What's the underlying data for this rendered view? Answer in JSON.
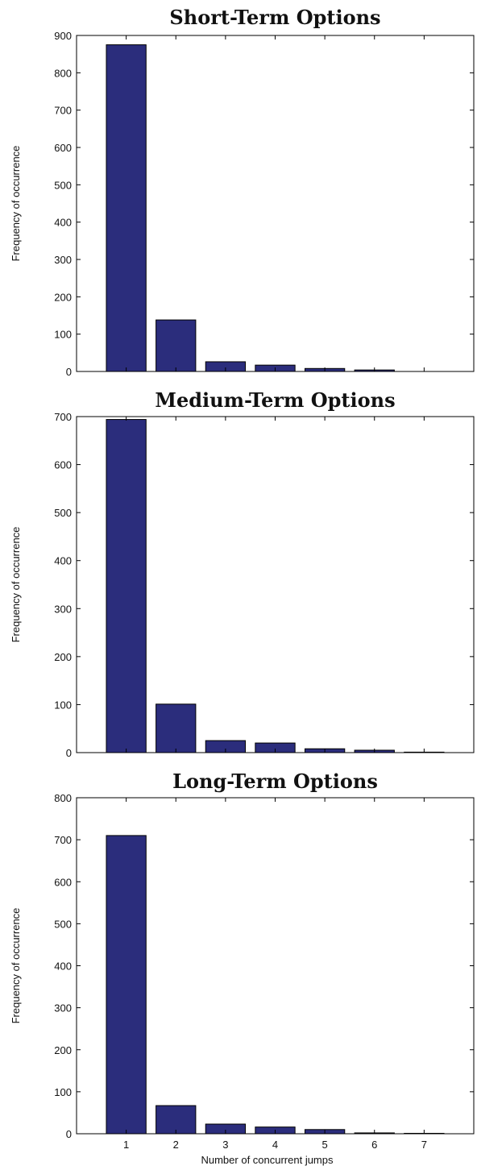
{
  "chart_data": [
    {
      "type": "bar",
      "title": "Short-Term Options",
      "xlabel": "",
      "ylabel": "Frequency of occurrence",
      "categories": [
        1,
        2,
        3,
        4,
        5,
        6,
        7
      ],
      "values": [
        875,
        138,
        26,
        17,
        8,
        4,
        0
      ],
      "xlim": [
        0,
        8
      ],
      "ylim": [
        0,
        900
      ],
      "yticks": [
        0,
        100,
        200,
        300,
        400,
        500,
        600,
        700,
        800,
        900
      ],
      "show_xtick_labels": false,
      "grid": false,
      "color": "#2b2d7c"
    },
    {
      "type": "bar",
      "title": "Medium-Term Options",
      "xlabel": "",
      "ylabel": "Frequency of occurrence",
      "categories": [
        1,
        2,
        3,
        4,
        5,
        6,
        7
      ],
      "values": [
        694,
        101,
        25,
        20,
        8,
        5,
        1
      ],
      "xlim": [
        0,
        8
      ],
      "ylim": [
        0,
        700
      ],
      "yticks": [
        0,
        100,
        200,
        300,
        400,
        500,
        600,
        700
      ],
      "show_xtick_labels": false,
      "grid": false,
      "color": "#2b2d7c"
    },
    {
      "type": "bar",
      "title": "Long-Term Options",
      "xlabel": "Number of concurrent jumps",
      "ylabel": "Frequency of occurrence",
      "categories": [
        1,
        2,
        3,
        4,
        5,
        6,
        7
      ],
      "values": [
        710,
        67,
        23,
        16,
        10,
        2,
        1
      ],
      "xlim": [
        0,
        8
      ],
      "ylim": [
        0,
        800
      ],
      "yticks": [
        0,
        100,
        200,
        300,
        400,
        500,
        600,
        700,
        800
      ],
      "show_xtick_labels": true,
      "grid": false,
      "color": "#2b2d7c"
    }
  ]
}
